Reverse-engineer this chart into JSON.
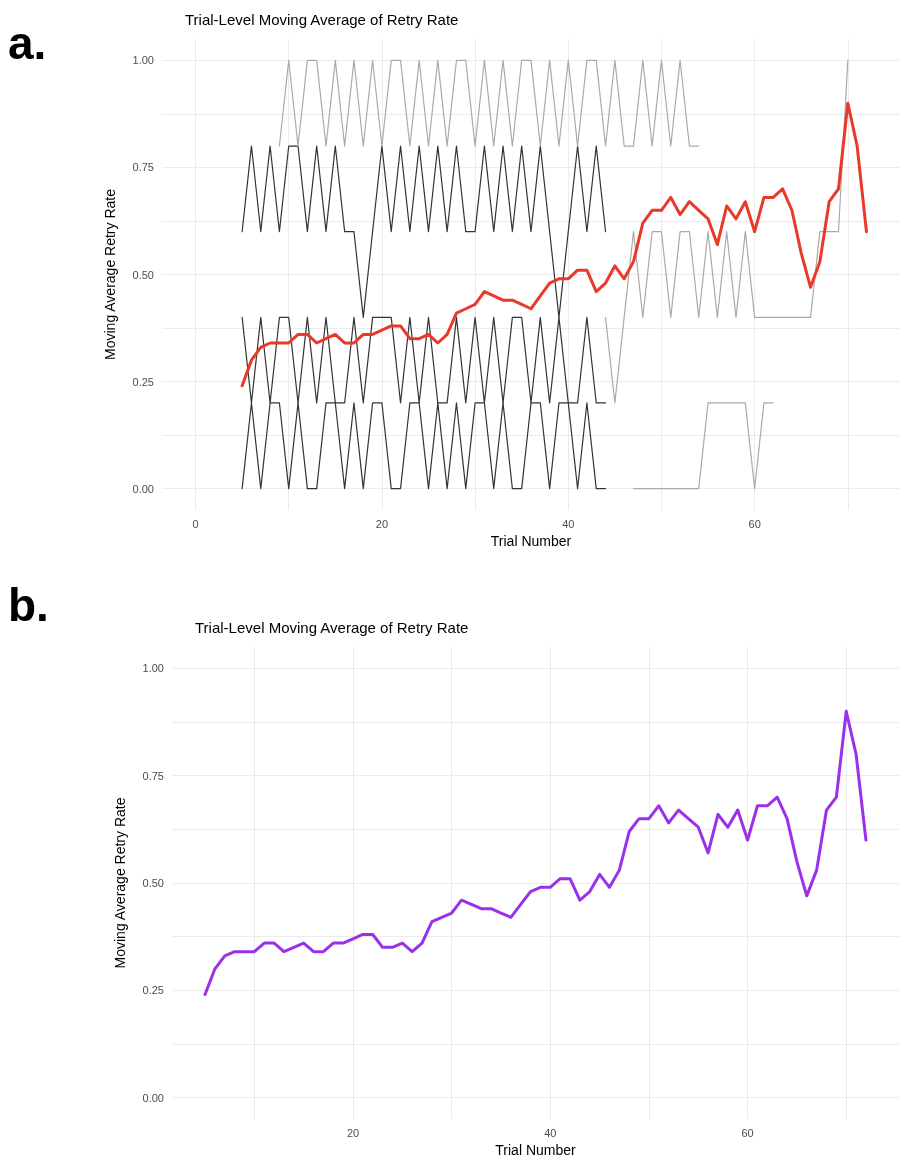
{
  "chart_data": [
    {
      "type": "line",
      "title": "Trial-Level Moving Average of Retry Rate",
      "xlabel": "Trial Number",
      "ylabel": "Moving Average Retry Rate",
      "annotations": [
        "a."
      ],
      "xlim": [
        -3.6,
        75.6
      ],
      "ylim": [
        -0.05,
        1.05
      ],
      "xticks": [
        0,
        {
          "value": 10,
          "label": null
        },
        20,
        {
          "value": 30,
          "label": null
        },
        40,
        {
          "value": 50,
          "label": null
        },
        60,
        {
          "value": 70,
          "label": null
        }
      ],
      "yticks": [
        {
          "value": 0,
          "label": "0.00"
        },
        {
          "value": 0.125,
          "label": null
        },
        {
          "value": 0.25,
          "label": "0.25"
        },
        {
          "value": 0.375,
          "label": null
        },
        {
          "value": 0.5,
          "label": "0.50"
        },
        {
          "value": 0.625,
          "label": null
        },
        {
          "value": 0.75,
          "label": "0.75"
        },
        {
          "value": 0.875,
          "label": null
        },
        {
          "value": 1,
          "label": "1.00"
        }
      ],
      "grid": true,
      "marker": "none",
      "series": [
        {
          "color": "#333333",
          "x": [
            5,
            6,
            7,
            8,
            9,
            10,
            11,
            12,
            13,
            14,
            15,
            16,
            17,
            18,
            19,
            20,
            21,
            22,
            23,
            24,
            25,
            26,
            27,
            28,
            29,
            30,
            31,
            32,
            33,
            34,
            35,
            36,
            37,
            38,
            39,
            40,
            41,
            42,
            43,
            44
          ],
          "values": [
            0,
            0.2,
            0,
            0.2,
            0.2,
            0,
            0.2,
            0,
            0,
            0.2,
            0.2,
            0,
            0.2,
            0,
            0.2,
            0.2,
            0,
            0,
            0.2,
            0.2,
            0,
            0.2,
            0,
            0.2,
            0,
            0.2,
            0.2,
            0,
            0.2,
            0,
            0,
            0.2,
            0.2,
            0,
            0.2,
            0.2,
            0,
            0.2,
            0,
            0
          ]
        },
        {
          "color": "#333333",
          "x": [
            5,
            6,
            7,
            8,
            9,
            10,
            11,
            12,
            13,
            14,
            15,
            16,
            17,
            18,
            19,
            20,
            21,
            22,
            23,
            24,
            25,
            26,
            27,
            28,
            29,
            30,
            31,
            32,
            33,
            34,
            35,
            36,
            37,
            38,
            39,
            40,
            41,
            42,
            43,
            44
          ],
          "values": [
            0.4,
            0.2,
            0.4,
            0.2,
            0.4,
            0.4,
            0.2,
            0.4,
            0.2,
            0.4,
            0.2,
            0.2,
            0.4,
            0.2,
            0.4,
            0.4,
            0.4,
            0.2,
            0.4,
            0.2,
            0.4,
            0.2,
            0.2,
            0.4,
            0.2,
            0.4,
            0.2,
            0.4,
            0.2,
            0.4,
            0.4,
            0.2,
            0.4,
            0.2,
            0.4,
            0.2,
            0.2,
            0.4,
            0.2,
            0.2
          ]
        },
        {
          "color": "#333333",
          "x": [
            5,
            6,
            7,
            8,
            9,
            10,
            11,
            12,
            13,
            14,
            15,
            16,
            17,
            18,
            19,
            20,
            21,
            22,
            23,
            24,
            25,
            26,
            27,
            28,
            29,
            30,
            31,
            32,
            33,
            34,
            35,
            36,
            37,
            38,
            39,
            40,
            41,
            42,
            43,
            44
          ],
          "values": [
            0.6,
            0.8,
            0.6,
            0.8,
            0.6,
            0.8,
            0.8,
            0.6,
            0.8,
            0.6,
            0.8,
            0.6,
            0.6,
            0.4,
            0.6,
            0.8,
            0.6,
            0.8,
            0.6,
            0.8,
            0.6,
            0.8,
            0.6,
            0.8,
            0.6,
            0.6,
            0.8,
            0.6,
            0.8,
            0.6,
            0.8,
            0.6,
            0.8,
            0.6,
            0.4,
            0.6,
            0.8,
            0.6,
            0.8,
            0.6
          ]
        },
        {
          "color": "#aaaaaa",
          "x": [
            9,
            10,
            11,
            12,
            13,
            14,
            15,
            16,
            17,
            18,
            19,
            20,
            21,
            22,
            23,
            24,
            25,
            26,
            27,
            28,
            29,
            30,
            31,
            32,
            33,
            34,
            35,
            36,
            37,
            38,
            39,
            40,
            41,
            42,
            43,
            44,
            45,
            46,
            47,
            48,
            49,
            50,
            51,
            52,
            53,
            54
          ],
          "values": [
            0.8,
            1,
            0.8,
            1,
            1,
            0.8,
            1,
            0.8,
            1,
            0.8,
            1,
            0.8,
            1,
            1,
            0.8,
            1,
            0.8,
            1,
            0.8,
            1,
            1,
            0.8,
            1,
            0.8,
            1,
            0.8,
            1,
            1,
            0.8,
            1,
            0.8,
            1,
            0.8,
            1,
            1,
            0.8,
            1,
            0.8,
            0.8,
            1,
            0.8,
            1,
            0.8,
            1,
            0.8,
            0.8
          ]
        },
        {
          "color": "#aaaaaa",
          "x": [
            44,
            45,
            46,
            47,
            48,
            49,
            50,
            51,
            52,
            53,
            54,
            55,
            56,
            57,
            58,
            59,
            60,
            61,
            62,
            63,
            64,
            65,
            66,
            67,
            68,
            69,
            70
          ],
          "values": [
            0.4,
            0.2,
            0.4,
            0.6,
            0.4,
            0.6,
            0.6,
            0.4,
            0.6,
            0.6,
            0.4,
            0.6,
            0.4,
            0.6,
            0.4,
            0.6,
            0.4,
            0.4,
            0.4,
            0.4,
            0.4,
            0.4,
            0.4,
            0.6,
            0.6,
            0.6,
            1
          ]
        },
        {
          "color": "#aaaaaa",
          "x": [
            47,
            48,
            49,
            50,
            51,
            52,
            53,
            54,
            55,
            56,
            57,
            58,
            59,
            60,
            61,
            62
          ],
          "values": [
            0,
            0,
            0,
            0,
            0,
            0,
            0,
            0,
            0.2,
            0.2,
            0.2,
            0.2,
            0.2,
            0,
            0.2,
            0.2
          ]
        },
        {
          "color": "#e8392a",
          "x": [
            5,
            6,
            7,
            8,
            9,
            10,
            11,
            12,
            13,
            14,
            15,
            16,
            17,
            18,
            19,
            20,
            21,
            22,
            23,
            24,
            25,
            26,
            27,
            28,
            29,
            30,
            31,
            32,
            33,
            34,
            35,
            36,
            37,
            38,
            39,
            40,
            41,
            42,
            43,
            44,
            45,
            46,
            47,
            48,
            49,
            50,
            51,
            52,
            53,
            54,
            55,
            56,
            57,
            58,
            59,
            60,
            61,
            62,
            63,
            64,
            65,
            66,
            67,
            68,
            69,
            70,
            71,
            72
          ],
          "values": [
            0.24,
            0.3,
            0.33,
            0.34,
            0.34,
            0.34,
            0.36,
            0.36,
            0.34,
            0.35,
            0.36,
            0.34,
            0.34,
            0.36,
            0.36,
            0.37,
            0.38,
            0.38,
            0.35,
            0.35,
            0.36,
            0.34,
            0.36,
            0.41,
            0.42,
            0.43,
            0.46,
            0.45,
            0.44,
            0.44,
            0.43,
            0.42,
            0.45,
            0.48,
            0.49,
            0.49,
            0.51,
            0.51,
            0.46,
            0.48,
            0.52,
            0.49,
            0.53,
            0.62,
            0.65,
            0.65,
            0.68,
            0.64,
            0.67,
            0.65,
            0.63,
            0.57,
            0.66,
            0.63,
            0.67,
            0.6,
            0.68,
            0.68,
            0.7,
            0.65,
            0.55,
            0.47,
            0.53,
            0.67,
            0.7,
            0.9,
            0.8,
            0.6
          ]
        }
      ]
    },
    {
      "type": "line",
      "title": "Trial-Level Moving Average of Retry Rate",
      "xlabel": "Trial Number",
      "ylabel": "Moving Average Retry Rate",
      "annotations": [
        "b."
      ],
      "xlim": [
        1.65,
        75.35
      ],
      "ylim": [
        -0.05,
        1.05
      ],
      "xticks": [
        {
          "value": 10,
          "label": null
        },
        20,
        {
          "value": 30,
          "label": null
        },
        40,
        {
          "value": 50,
          "label": null
        },
        60,
        {
          "value": 70,
          "label": null
        }
      ],
      "yticks": [
        {
          "value": 0,
          "label": "0.00"
        },
        {
          "value": 0.125,
          "label": null
        },
        {
          "value": 0.25,
          "label": "0.25"
        },
        {
          "value": 0.375,
          "label": null
        },
        {
          "value": 0.5,
          "label": "0.50"
        },
        {
          "value": 0.625,
          "label": null
        },
        {
          "value": 0.75,
          "label": "0.75"
        },
        {
          "value": 0.875,
          "label": null
        },
        {
          "value": 1,
          "label": "1.00"
        }
      ],
      "grid": true,
      "marker": "none",
      "series": [
        {
          "color": "#9b30e8",
          "x": [
            5,
            6,
            7,
            8,
            9,
            10,
            11,
            12,
            13,
            14,
            15,
            16,
            17,
            18,
            19,
            20,
            21,
            22,
            23,
            24,
            25,
            26,
            27,
            28,
            29,
            30,
            31,
            32,
            33,
            34,
            35,
            36,
            37,
            38,
            39,
            40,
            41,
            42,
            43,
            44,
            45,
            46,
            47,
            48,
            49,
            50,
            51,
            52,
            53,
            54,
            55,
            56,
            57,
            58,
            59,
            60,
            61,
            62,
            63,
            64,
            65,
            66,
            67,
            68,
            69,
            70,
            71,
            72
          ],
          "values": [
            0.24,
            0.3,
            0.33,
            0.34,
            0.34,
            0.34,
            0.36,
            0.36,
            0.34,
            0.35,
            0.36,
            0.34,
            0.34,
            0.36,
            0.36,
            0.37,
            0.38,
            0.38,
            0.35,
            0.35,
            0.36,
            0.34,
            0.36,
            0.41,
            0.42,
            0.43,
            0.46,
            0.45,
            0.44,
            0.44,
            0.43,
            0.42,
            0.45,
            0.48,
            0.49,
            0.49,
            0.51,
            0.51,
            0.46,
            0.48,
            0.52,
            0.49,
            0.53,
            0.62,
            0.65,
            0.65,
            0.68,
            0.64,
            0.67,
            0.65,
            0.63,
            0.57,
            0.66,
            0.63,
            0.67,
            0.6,
            0.68,
            0.68,
            0.7,
            0.65,
            0.55,
            0.47,
            0.53,
            0.67,
            0.7,
            0.9,
            0.8,
            0.6
          ]
        }
      ]
    }
  ]
}
